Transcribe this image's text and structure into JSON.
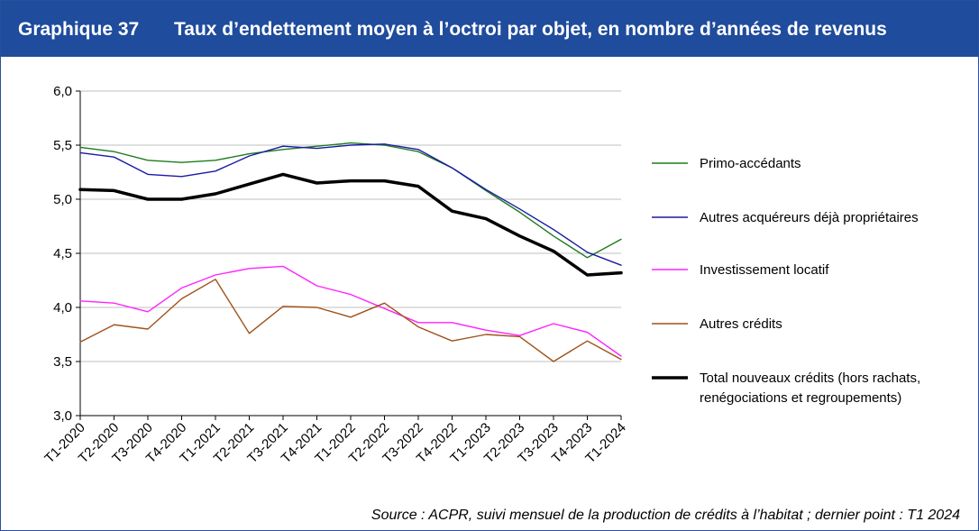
{
  "header": {
    "number": "Graphique 37",
    "title": "Taux d’endettement moyen à l’octroi par objet, en nombre d’années de revenus"
  },
  "source": "Source : ACPR, suivi mensuel de la production de crédits à l’habitat ; dernier point : T1 2024",
  "colors": {
    "header_bg": "#1f4c9c",
    "primo": "#1e7b1e",
    "autres_acquereurs": "#1a1aa6",
    "investissement": "#ff22ff",
    "autres_credits": "#a0521a",
    "total": "#000000"
  },
  "chart_data": {
    "type": "line",
    "title": "Taux d’endettement moyen à l’octroi par objet, en nombre d’années de revenus",
    "xlabel": "",
    "ylabel": "",
    "ylim": [
      3.0,
      6.0
    ],
    "yticks": [
      "3,0",
      "3,5",
      "4,0",
      "4,5",
      "5,0",
      "5,5",
      "6,0"
    ],
    "grid": true,
    "legend_position": "right",
    "categories": [
      "T1-2020",
      "T2-2020",
      "T3-2020",
      "T4-2020",
      "T1-2021",
      "T2-2021",
      "T3-2021",
      "T4-2021",
      "T1-2022",
      "T2-2022",
      "T3-2022",
      "T4-2022",
      "T1-2023",
      "T2-2023",
      "T3-2023",
      "T4-2023",
      "T1-2024"
    ],
    "series": [
      {
        "name": "Primo-accédants",
        "color": "#1e7b1e",
        "width": "thin",
        "values": [
          5.48,
          5.44,
          5.36,
          5.34,
          5.36,
          5.42,
          5.46,
          5.49,
          5.52,
          5.5,
          5.44,
          5.29,
          5.08,
          4.88,
          4.66,
          4.46,
          4.63
        ]
      },
      {
        "name": "Autres acquéreurs déjà propriétaires",
        "color": "#1a1aa6",
        "width": "thin",
        "values": [
          5.43,
          5.39,
          5.23,
          5.21,
          5.26,
          5.4,
          5.49,
          5.47,
          5.5,
          5.51,
          5.46,
          5.29,
          5.09,
          4.91,
          4.72,
          4.51,
          4.39
        ]
      },
      {
        "name": "Investissement locatif",
        "color": "#ff22ff",
        "width": "thin",
        "values": [
          4.06,
          4.04,
          3.96,
          4.18,
          4.3,
          4.36,
          4.38,
          4.2,
          4.12,
          3.99,
          3.86,
          3.86,
          3.79,
          3.74,
          3.85,
          3.77,
          3.55
        ]
      },
      {
        "name": "Autres crédits",
        "color": "#a0521a",
        "width": "thin",
        "values": [
          3.68,
          3.84,
          3.8,
          4.08,
          4.26,
          3.76,
          4.01,
          4.0,
          3.91,
          4.04,
          3.82,
          3.69,
          3.75,
          3.73,
          3.5,
          3.69,
          3.52
        ]
      },
      {
        "name": "Total nouveaux crédits (hors rachats, renégociations et regroupements)",
        "legend_lines": [
          "Total nouveaux crédits (hors rachats,",
          "renégociations et regroupements)"
        ],
        "color": "#000000",
        "width": "thick",
        "values": [
          5.09,
          5.08,
          5.0,
          5.0,
          5.05,
          5.14,
          5.23,
          5.15,
          5.17,
          5.17,
          5.12,
          4.89,
          4.82,
          4.66,
          4.52,
          4.3,
          4.32
        ]
      }
    ]
  }
}
